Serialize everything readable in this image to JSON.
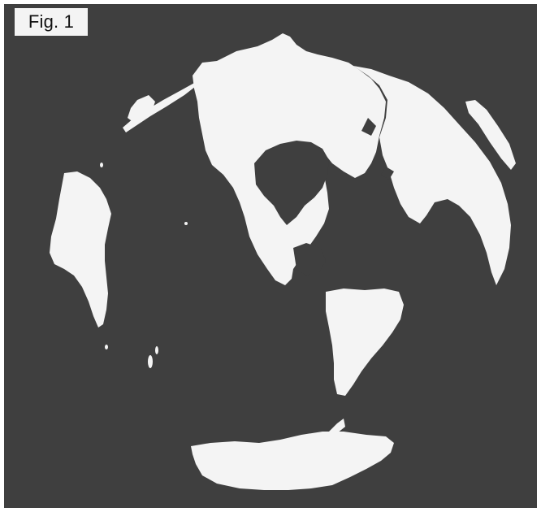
{
  "figure": {
    "label": "Fig. 1"
  },
  "colors": {
    "ocean": "#3f3f3f",
    "land": "#f4f4f4",
    "frame": "#ffffff"
  }
}
